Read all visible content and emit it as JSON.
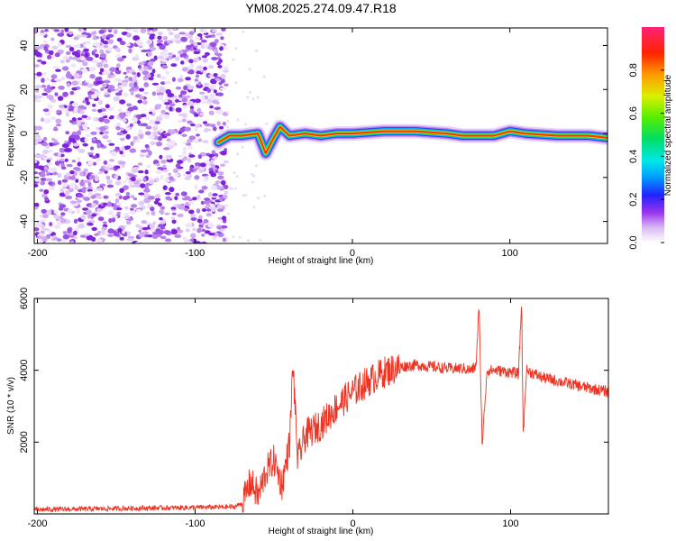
{
  "title": "YM08.2025.274.09.47.R18",
  "chart_data": [
    {
      "type": "heatmap",
      "xlabel": "Height of straight line (km)",
      "ylabel": "Frequency (Hz)",
      "xlim": [
        -202,
        162
      ],
      "ylim": [
        -50,
        48
      ],
      "xticks": [
        -200,
        -100,
        0,
        100
      ],
      "yticks": [
        -40,
        -20,
        0,
        20,
        40
      ],
      "noise_region_x": [
        -202,
        -80
      ],
      "signal_track": [
        {
          "x": -85,
          "y": -4
        },
        {
          "x": -78,
          "y": -1
        },
        {
          "x": -70,
          "y": -1
        },
        {
          "x": -60,
          "y": 0
        },
        {
          "x": -55,
          "y": -9
        },
        {
          "x": -50,
          "y": -2
        },
        {
          "x": -46,
          "y": 3
        },
        {
          "x": -40,
          "y": -1
        },
        {
          "x": -30,
          "y": 0
        },
        {
          "x": -20,
          "y": -1
        },
        {
          "x": -10,
          "y": 0
        },
        {
          "x": 0,
          "y": 0
        },
        {
          "x": 20,
          "y": 1
        },
        {
          "x": 40,
          "y": 1
        },
        {
          "x": 60,
          "y": 0
        },
        {
          "x": 70,
          "y": -1
        },
        {
          "x": 80,
          "y": -1
        },
        {
          "x": 90,
          "y": -1
        },
        {
          "x": 100,
          "y": 1
        },
        {
          "x": 110,
          "y": 0
        },
        {
          "x": 130,
          "y": -1
        },
        {
          "x": 150,
          "y": -1
        },
        {
          "x": 162,
          "y": -2
        }
      ],
      "colorbar": {
        "label": "Normalized spectral amplitude",
        "ticks": [
          "0.0",
          "0.2",
          "0.4",
          "0.6",
          "0.8"
        ],
        "tick_values": [
          0.0,
          0.2,
          0.4,
          0.6,
          0.8
        ],
        "range": [
          0,
          1
        ]
      }
    },
    {
      "type": "line",
      "xlabel": "Height of straight line (km)",
      "ylabel": "SNR (10 * v/v)",
      "xlim": [
        -202,
        162
      ],
      "ylim": [
        0,
        6000
      ],
      "xticks": [
        -200,
        -100,
        0,
        100
      ],
      "yticks": [
        2000,
        4000,
        6000
      ],
      "color": "#ee3322",
      "series": [
        {
          "name": "SNR",
          "x": [
            -202,
            -150,
            -100,
            -75,
            -70,
            -65,
            -60,
            -55,
            -50,
            -45,
            -40,
            -38,
            -35,
            -30,
            -20,
            -10,
            0,
            10,
            20,
            30,
            40,
            50,
            60,
            70,
            75,
            78,
            80,
            82,
            85,
            90,
            100,
            105,
            107,
            108,
            110,
            115,
            120,
            130,
            140,
            150,
            162
          ],
          "y": [
            120,
            150,
            180,
            200,
            300,
            900,
            500,
            1200,
            1500,
            800,
            2000,
            4200,
            1500,
            2200,
            2500,
            3000,
            3400,
            3700,
            3950,
            4100,
            4150,
            4100,
            4050,
            4050,
            4000,
            4100,
            5800,
            1900,
            4000,
            4000,
            3950,
            3900,
            5900,
            2100,
            4000,
            3900,
            3800,
            3700,
            3600,
            3500,
            3400
          ]
        }
      ]
    }
  ]
}
